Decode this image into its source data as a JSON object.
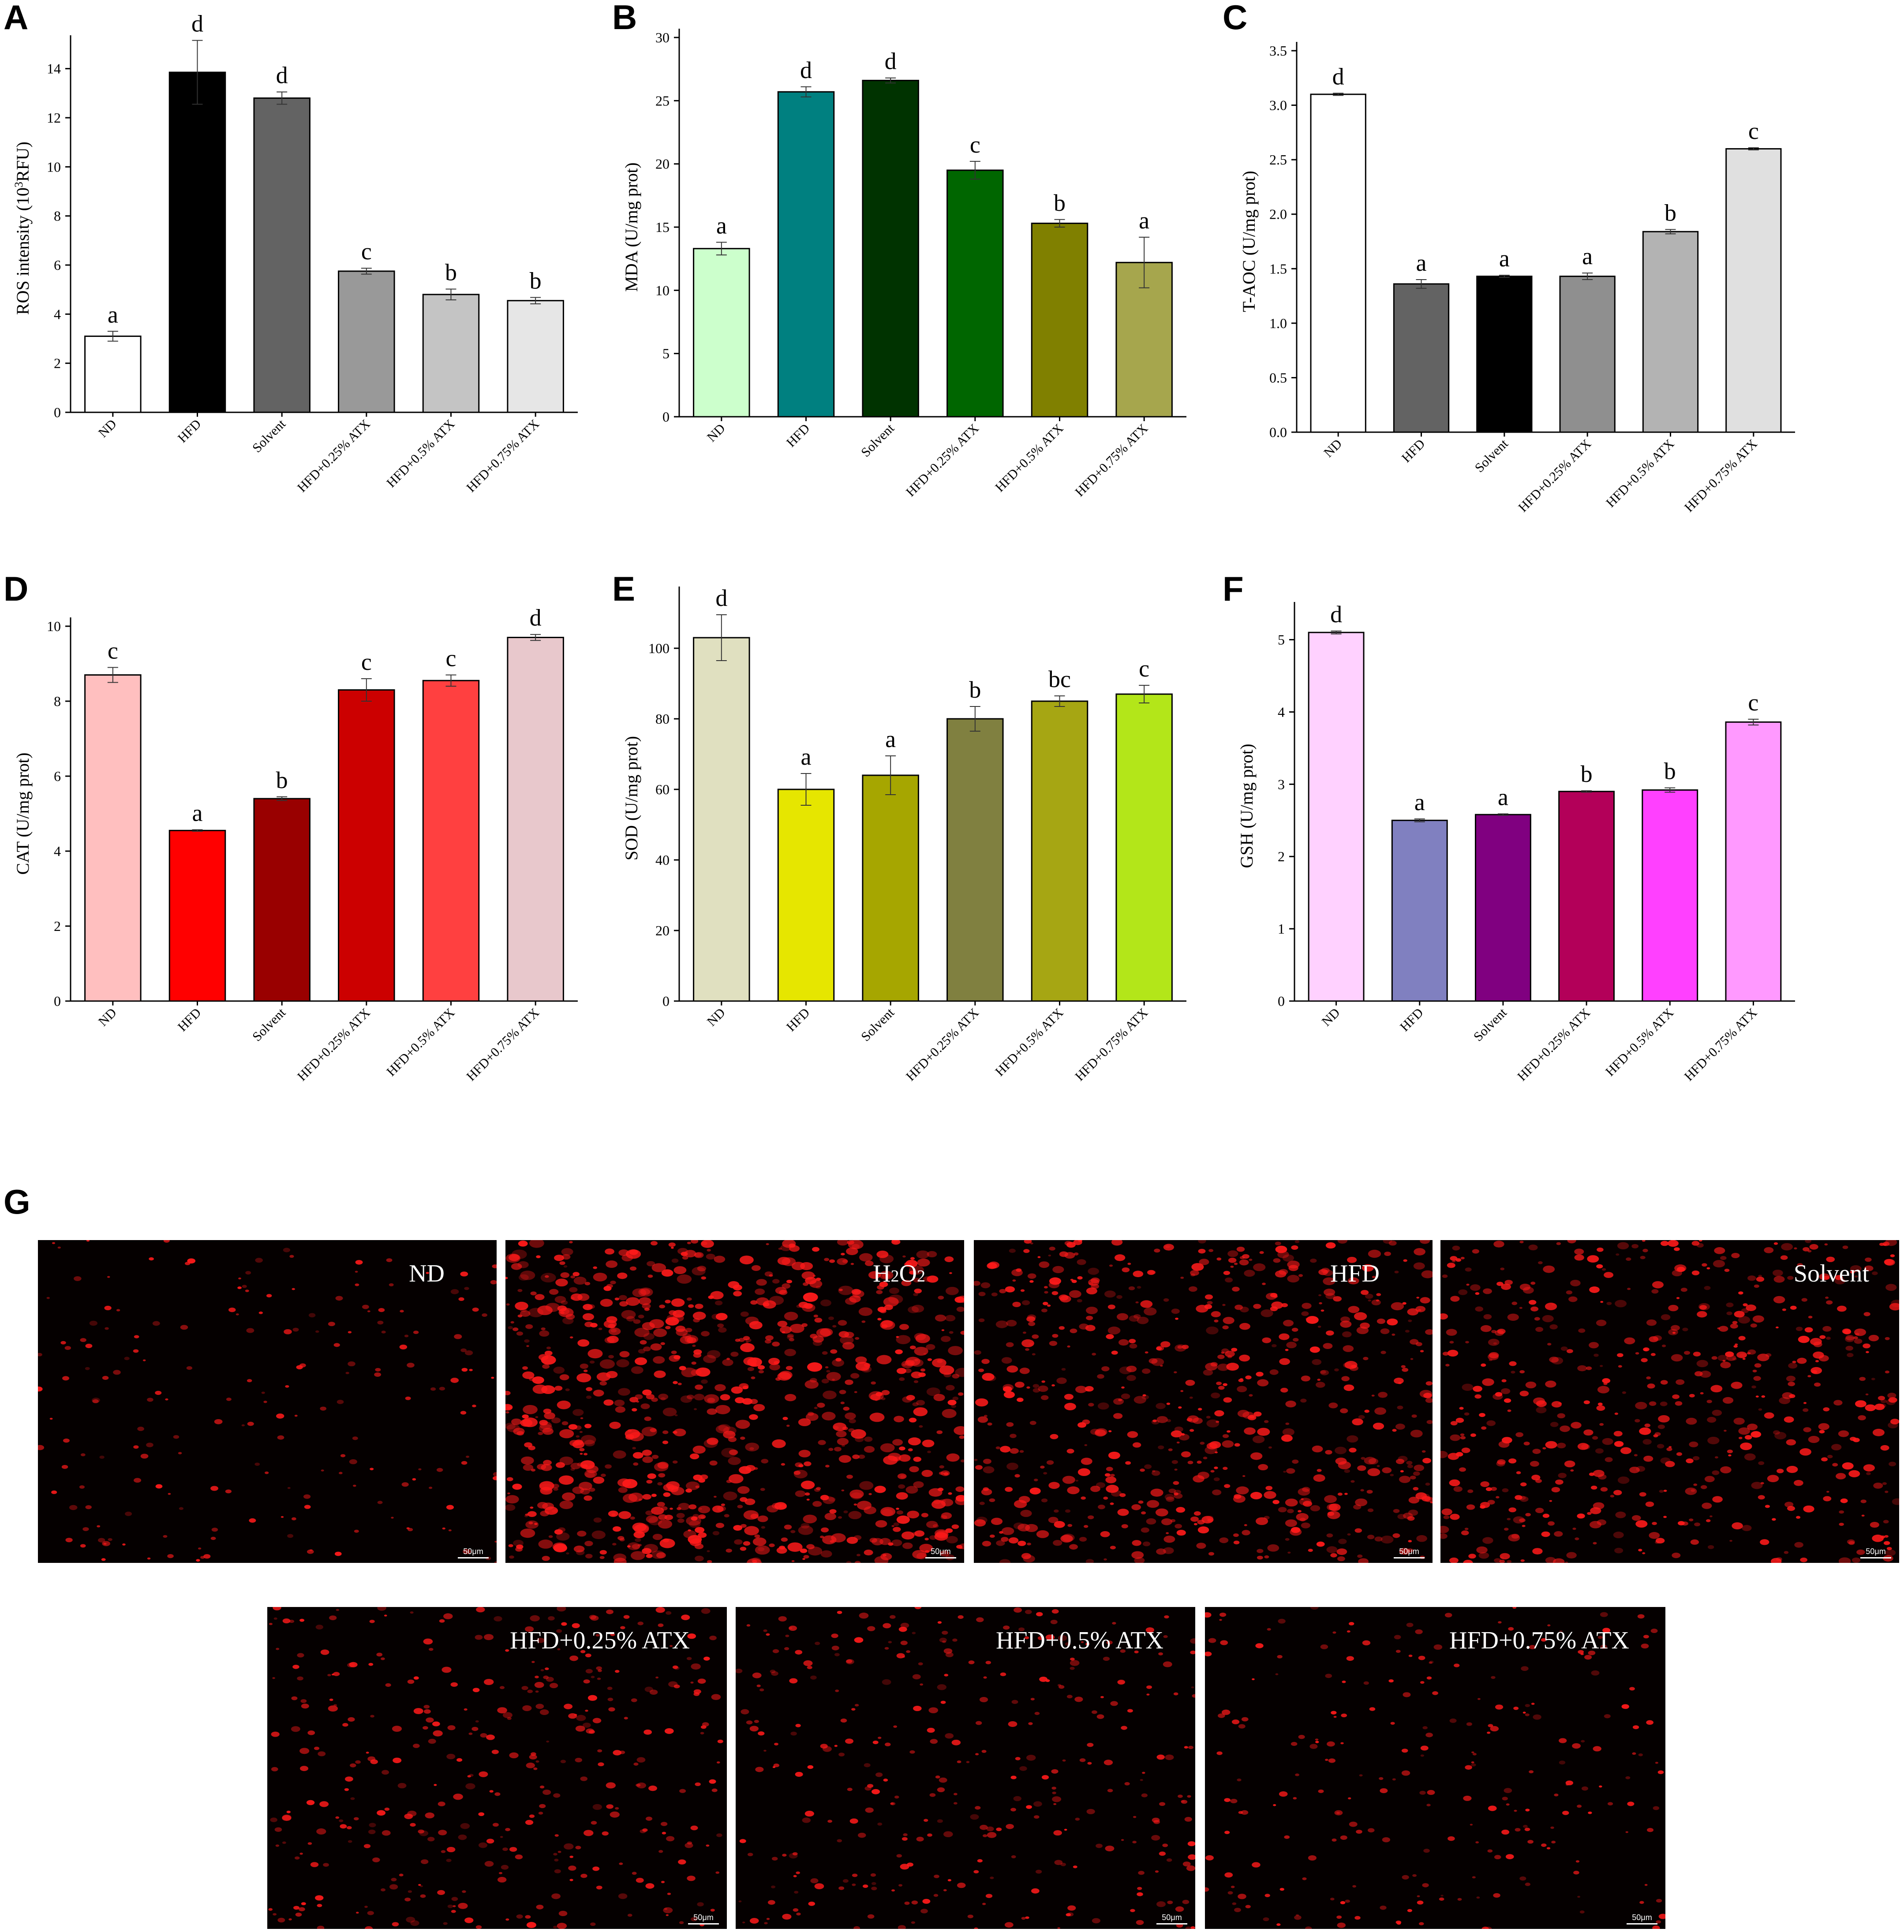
{
  "panel_letters": [
    "A",
    "B",
    "C",
    "D",
    "E",
    "F",
    "G"
  ],
  "chart_data": [
    {
      "type": "bar",
      "panel": "A",
      "categories": [
        "ND",
        "HFD",
        "Solvent",
        "HFD+0.25% ATX",
        "HFD+0.5% ATX",
        "HFD+0.75% ATX"
      ],
      "values": [
        3.1,
        13.85,
        12.8,
        5.75,
        4.8,
        4.55
      ],
      "errors": [
        0.2,
        1.3,
        0.25,
        0.12,
        0.22,
        0.13
      ],
      "significance": [
        "a",
        "d",
        "d",
        "c",
        "b",
        "b"
      ],
      "colors": [
        "#ffffff",
        "#000000",
        "#636363",
        "#999999",
        "#c4c4c4",
        "#e6e6e6"
      ],
      "ylabel": "ROS intensity (10",
      "ylabel_sup": "3",
      "ylabel_tail": "RFU)",
      "ylim": [
        0,
        15
      ],
      "yticks": [
        0,
        2,
        4,
        6,
        8,
        10,
        12,
        14
      ]
    },
    {
      "type": "bar",
      "panel": "B",
      "categories": [
        "ND",
        "HFD",
        "Solvent",
        "HFD+0.25% ATX",
        "HFD+0.5% ATX",
        "HFD+0.75% ATX"
      ],
      "values": [
        13.3,
        25.7,
        26.6,
        19.5,
        15.3,
        12.2
      ],
      "errors": [
        0.5,
        0.4,
        0.2,
        0.7,
        0.3,
        2.0
      ],
      "significance": [
        "a",
        "d",
        "d",
        "c",
        "b",
        "a"
      ],
      "colors": [
        "#ccffcc",
        "#008080",
        "#003300",
        "#006600",
        "#808000",
        "#a6a64d"
      ],
      "ylabel": "MDA (U/mg prot)",
      "ylim": [
        0,
        30
      ],
      "yticks": [
        0,
        5,
        10,
        15,
        20,
        25,
        30
      ]
    },
    {
      "type": "bar",
      "panel": "C",
      "categories": [
        "ND",
        "HFD",
        "Solvent",
        "HFD+0.25% ATX",
        "HFD+0.5% ATX",
        "HFD+0.75% ATX"
      ],
      "values": [
        3.1,
        1.36,
        1.43,
        1.43,
        1.84,
        2.6
      ],
      "errors": [
        0.01,
        0.04,
        0.01,
        0.03,
        0.02,
        0.01
      ],
      "significance": [
        "d",
        "a",
        "a",
        "a",
        "b",
        "c"
      ],
      "colors": [
        "#ffffff",
        "#636363",
        "#000000",
        "#8f8f8f",
        "#b3b3b3",
        "#e0e0e0"
      ],
      "ylabel": "T-AOC (U/mg prot)",
      "ylim": [
        0,
        3.5
      ],
      "yticks": [
        0.0,
        0.5,
        1.0,
        1.5,
        2.0,
        2.5,
        3.0,
        3.5
      ]
    },
    {
      "type": "bar",
      "panel": "D",
      "categories": [
        "ND",
        "HFD",
        "Solvent",
        "HFD+0.25% ATX",
        "HFD+0.5% ATX",
        "HFD+0.75% ATX"
      ],
      "values": [
        8.7,
        4.55,
        5.4,
        8.3,
        8.55,
        9.7
      ],
      "errors": [
        0.2,
        0.02,
        0.05,
        0.3,
        0.15,
        0.08
      ],
      "significance": [
        "c",
        "a",
        "b",
        "c",
        "c",
        "d"
      ],
      "colors": [
        "#ffbfbf",
        "#ff0000",
        "#990000",
        "#cc0000",
        "#ff4040",
        "#e8c8cc"
      ],
      "ylabel": "CAT (U/mg prot)",
      "ylim": [
        0,
        10
      ],
      "yticks": [
        0,
        2,
        4,
        6,
        8,
        10
      ]
    },
    {
      "type": "bar",
      "panel": "E",
      "categories": [
        "ND",
        "HFD",
        "Solvent",
        "HFD+0.25% ATX",
        "HFD+0.5% ATX",
        "HFD+0.75% ATX"
      ],
      "values": [
        103,
        60,
        64,
        80,
        85,
        87
      ],
      "errors": [
        6.5,
        4.5,
        5.5,
        3.5,
        1.5,
        2.5
      ],
      "significance": [
        "d",
        "a",
        "a",
        "b",
        "bc",
        "c"
      ],
      "colors": [
        "#e0e0c0",
        "#e6e600",
        "#a6a600",
        "#808040",
        "#a6a613",
        "#b3e619"
      ],
      "ylabel": "SOD (U/mg prot)",
      "ylim": [
        0,
        115
      ],
      "yticks": [
        0,
        20,
        40,
        60,
        80,
        100
      ]
    },
    {
      "type": "bar",
      "panel": "F",
      "categories": [
        "ND",
        "HFD",
        "Solvent",
        "HFD+0.25% ATX",
        "HFD+0.5% ATX",
        "HFD+0.75% ATX"
      ],
      "values": [
        5.1,
        2.5,
        2.58,
        2.9,
        2.92,
        3.86
      ],
      "errors": [
        0.02,
        0.02,
        0.01,
        0.01,
        0.03,
        0.04
      ],
      "significance": [
        "d",
        "a",
        "a",
        "b",
        "b",
        "c"
      ],
      "colors": [
        "#ffd1ff",
        "#8080c0",
        "#800080",
        "#b30059",
        "#ff40ff",
        "#ff99ff"
      ],
      "ylabel": "GSH (U/mg prot)",
      "ylim": [
        0,
        5.4
      ],
      "yticks": [
        0,
        1,
        2,
        3,
        4,
        5
      ]
    }
  ],
  "micrographs": {
    "row1": [
      "ND",
      "H2O2",
      "HFD",
      "Solvent"
    ],
    "row2": [
      "HFD+0.25% ATX",
      "HFD+0.5% ATX",
      "HFD+0.75% ATX"
    ],
    "scale_label": "50μm",
    "density": [
      {
        "name": "ND",
        "level": 0.15
      },
      {
        "name": "H2O2",
        "level": 1.0
      },
      {
        "name": "HFD",
        "level": 0.7
      },
      {
        "name": "Solvent",
        "level": 0.6
      },
      {
        "name": "HFD+0.25% ATX",
        "level": 0.35
      },
      {
        "name": "HFD+0.5% ATX",
        "level": 0.3
      },
      {
        "name": "HFD+0.75% ATX",
        "level": 0.2
      }
    ]
  },
  "colors": {
    "fluorescence": "#ff1a1a",
    "micro_background": "#050000"
  }
}
